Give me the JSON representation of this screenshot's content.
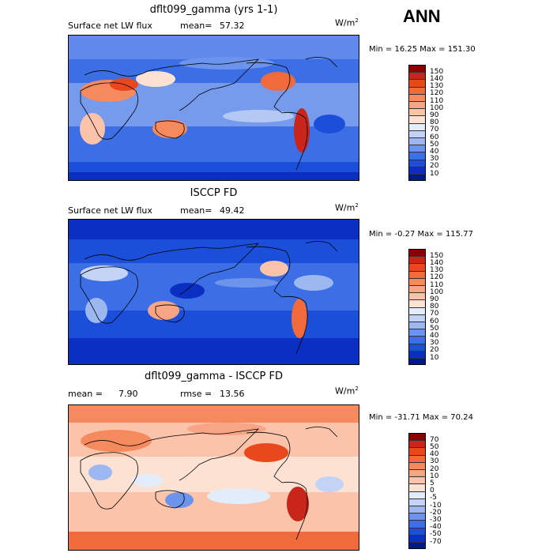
{
  "season": "ANN",
  "panels": [
    {
      "title": "dflt099_gamma (yrs 1-1)",
      "left_label": "Surface net LW flux",
      "stat_label": "mean=",
      "stat_value": "57.32",
      "units": "W/m",
      "units_sup": "2",
      "minmax": "Min =  16.25 Max = 151.30",
      "colorbar": {
        "levels": [
          "150",
          "140",
          "130",
          "120",
          "110",
          "100",
          "90",
          "80",
          "70",
          "60",
          "50",
          "40",
          "30",
          "20",
          "10"
        ],
        "colors": [
          "#8b0000",
          "#c8261a",
          "#e8481c",
          "#f06a3c",
          "#f58a5e",
          "#f7a584",
          "#fac3aa",
          "#fde2d3",
          "#e3ecfb",
          "#c3d3f5",
          "#9db8f0",
          "#6d94ec",
          "#3c6fe6",
          "#1b4fda",
          "#0a2fc2",
          "#001a8c"
        ]
      }
    },
    {
      "title": "ISCCP FD",
      "left_label": "Surface net LW flux",
      "stat_label": "mean=",
      "stat_value": "49.42",
      "units": "W/m",
      "units_sup": "2",
      "minmax": "Min =  -0.27 Max = 115.77",
      "colorbar": {
        "levels": [
          "150",
          "140",
          "130",
          "120",
          "110",
          "100",
          "90",
          "80",
          "70",
          "60",
          "50",
          "40",
          "30",
          "20",
          "10"
        ],
        "colors": [
          "#8b0000",
          "#c8261a",
          "#e8481c",
          "#f06a3c",
          "#f58a5e",
          "#f7a584",
          "#fac3aa",
          "#fde2d3",
          "#e3ecfb",
          "#c3d3f5",
          "#9db8f0",
          "#6d94ec",
          "#3c6fe6",
          "#1b4fda",
          "#0a2fc2",
          "#001a8c"
        ]
      }
    },
    {
      "title": "dflt099_gamma - ISCCP FD",
      "left_label": "mean =",
      "left_value": "7.90",
      "stat_label": "rmse =",
      "stat_value": "13.56",
      "units": "W/m",
      "units_sup": "2",
      "minmax": "Min = -31.71 Max =  70.24",
      "colorbar": {
        "levels": [
          "70",
          "50",
          "40",
          "30",
          "20",
          "10",
          "5",
          "0",
          "-5",
          "-10",
          "-20",
          "-30",
          "-40",
          "-50",
          "-70"
        ],
        "colors": [
          "#8b0000",
          "#c8261a",
          "#e8481c",
          "#f06a3c",
          "#f58a5e",
          "#f7a584",
          "#fac3aa",
          "#fde2d3",
          "#e3ecfb",
          "#c3d3f5",
          "#9db8f0",
          "#6d94ec",
          "#3c6fe6",
          "#1b4fda",
          "#0a2fc2",
          "#001a8c"
        ]
      }
    }
  ],
  "chart_data": [
    {
      "type": "heatmap",
      "title": "dflt099_gamma (yrs 1-1)",
      "subtitle": "Surface net LW flux",
      "mean": 57.32,
      "min": 16.25,
      "max": 151.3,
      "units": "W/m2",
      "contour_levels": [
        10,
        20,
        30,
        40,
        50,
        60,
        70,
        80,
        90,
        100,
        110,
        120,
        130,
        140,
        150
      ]
    },
    {
      "type": "heatmap",
      "title": "ISCCP FD",
      "subtitle": "Surface net LW flux",
      "mean": 49.42,
      "min": -0.27,
      "max": 115.77,
      "units": "W/m2",
      "contour_levels": [
        10,
        20,
        30,
        40,
        50,
        60,
        70,
        80,
        90,
        100,
        110,
        120,
        130,
        140,
        150
      ]
    },
    {
      "type": "heatmap",
      "title": "dflt099_gamma - ISCCP FD",
      "mean": 7.9,
      "rmse": 13.56,
      "min": -31.71,
      "max": 70.24,
      "units": "W/m2",
      "contour_levels": [
        -70,
        -50,
        -40,
        -30,
        -20,
        -10,
        -5,
        0,
        5,
        10,
        20,
        30,
        40,
        50,
        70
      ]
    }
  ]
}
